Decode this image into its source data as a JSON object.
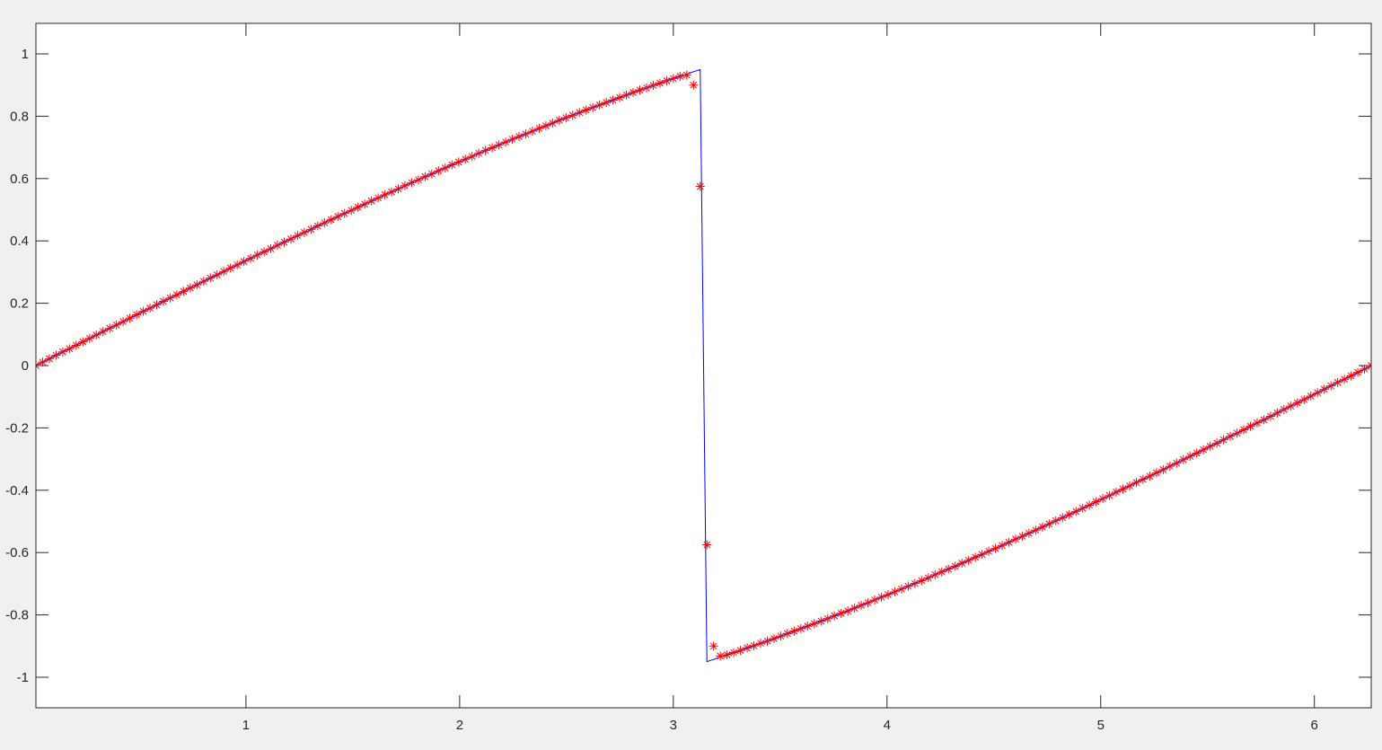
{
  "chart_data": {
    "type": "line",
    "title": "",
    "xlabel": "",
    "ylabel": "",
    "xlim": [
      0.017,
      6.266
    ],
    "ylim": [
      -1.098,
      1.098
    ],
    "grid": false,
    "legend": "none",
    "x_ticks": [
      "1",
      "2",
      "3",
      "4",
      "5",
      "6"
    ],
    "x_tick_values": [
      1,
      2,
      3,
      4,
      5,
      6
    ],
    "y_ticks": [
      "-1",
      "-0.8",
      "-0.6",
      "-0.4",
      "-0.2",
      "0",
      "0.2",
      "0.4",
      "0.6",
      "0.8",
      "1"
    ],
    "y_tick_values": [
      -1,
      -0.8,
      -0.6,
      -0.4,
      -0.2,
      0,
      0.2,
      0.4,
      0.6,
      0.8,
      1
    ],
    "x": {
      "start": 0.017,
      "stop": 6.266,
      "count": 200
    },
    "series": [
      {
        "style": "line",
        "color": "#0000ff",
        "values": [
          0,
          0.011,
          0.022,
          0.033,
          0.044,
          0.054,
          0.065,
          0.076,
          0.087,
          0.098,
          0.109,
          0.12,
          0.13,
          0.141,
          0.152,
          0.163,
          0.174,
          0.184,
          0.195,
          0.206,
          0.217,
          0.227,
          0.238,
          0.249,
          0.259,
          0.27,
          0.281,
          0.291,
          0.302,
          0.313,
          0.323,
          0.334,
          0.344,
          0.355,
          0.365,
          0.375,
          0.386,
          0.396,
          0.406,
          0.417,
          0.427,
          0.437,
          0.448,
          0.458,
          0.468,
          0.478,
          0.488,
          0.498,
          0.508,
          0.518,
          0.528,
          0.538,
          0.548,
          0.557,
          0.567,
          0.577,
          0.587,
          0.596,
          0.606,
          0.615,
          0.625,
          0.634,
          0.644,
          0.653,
          0.662,
          0.671,
          0.681,
          0.69,
          0.699,
          0.708,
          0.717,
          0.726,
          0.735,
          0.743,
          0.752,
          0.761,
          0.769,
          0.778,
          0.787,
          0.795,
          0.803,
          0.812,
          0.82,
          0.828,
          0.836,
          0.844,
          0.852,
          0.86,
          0.868,
          0.876,
          0.884,
          0.891,
          0.899,
          0.906,
          0.914,
          0.921,
          0.928,
          0.935,
          0.943,
          0.95,
          -0.95,
          -0.943,
          -0.935,
          -0.928,
          -0.921,
          -0.914,
          -0.906,
          -0.899,
          -0.891,
          -0.884,
          -0.876,
          -0.868,
          -0.86,
          -0.852,
          -0.844,
          -0.836,
          -0.828,
          -0.82,
          -0.812,
          -0.803,
          -0.795,
          -0.787,
          -0.778,
          -0.769,
          -0.761,
          -0.752,
          -0.743,
          -0.735,
          -0.726,
          -0.717,
          -0.708,
          -0.699,
          -0.69,
          -0.681,
          -0.671,
          -0.662,
          -0.653,
          -0.644,
          -0.634,
          -0.625,
          -0.615,
          -0.606,
          -0.596,
          -0.587,
          -0.577,
          -0.567,
          -0.557,
          -0.548,
          -0.538,
          -0.528,
          -0.518,
          -0.508,
          -0.498,
          -0.488,
          -0.478,
          -0.468,
          -0.458,
          -0.448,
          -0.437,
          -0.427,
          -0.417,
          -0.406,
          -0.396,
          -0.386,
          -0.375,
          -0.365,
          -0.355,
          -0.344,
          -0.334,
          -0.323,
          -0.313,
          -0.302,
          -0.291,
          -0.281,
          -0.27,
          -0.259,
          -0.249,
          -0.238,
          -0.227,
          -0.217,
          -0.206,
          -0.195,
          -0.184,
          -0.174,
          -0.163,
          -0.152,
          -0.141,
          -0.13,
          -0.12,
          -0.109,
          -0.098,
          -0.087,
          -0.076,
          -0.065,
          -0.054,
          -0.044,
          -0.033,
          -0.022,
          -0.011,
          0
        ]
      },
      {
        "style": "markers",
        "marker": "asterisk",
        "color": "#ff0000",
        "values": [
          0,
          0.011,
          0.022,
          0.033,
          0.044,
          0.054,
          0.065,
          0.076,
          0.087,
          0.098,
          0.109,
          0.12,
          0.13,
          0.141,
          0.152,
          0.163,
          0.174,
          0.184,
          0.195,
          0.206,
          0.217,
          0.227,
          0.238,
          0.249,
          0.259,
          0.27,
          0.281,
          0.291,
          0.302,
          0.313,
          0.323,
          0.334,
          0.344,
          0.355,
          0.365,
          0.375,
          0.386,
          0.396,
          0.406,
          0.417,
          0.427,
          0.437,
          0.448,
          0.458,
          0.468,
          0.478,
          0.488,
          0.498,
          0.508,
          0.518,
          0.528,
          0.538,
          0.548,
          0.557,
          0.567,
          0.577,
          0.587,
          0.596,
          0.606,
          0.615,
          0.625,
          0.634,
          0.644,
          0.653,
          0.662,
          0.671,
          0.681,
          0.69,
          0.699,
          0.708,
          0.717,
          0.726,
          0.735,
          0.743,
          0.752,
          0.761,
          0.769,
          0.778,
          0.787,
          0.795,
          0.803,
          0.812,
          0.82,
          0.828,
          0.836,
          0.844,
          0.852,
          0.86,
          0.868,
          0.876,
          0.884,
          0.891,
          0.899,
          0.906,
          0.914,
          0.921,
          0.928,
          0.932,
          0.9,
          0.575,
          -0.575,
          -0.9,
          -0.932,
          -0.928,
          -0.921,
          -0.914,
          -0.906,
          -0.899,
          -0.891,
          -0.884,
          -0.876,
          -0.868,
          -0.86,
          -0.852,
          -0.844,
          -0.836,
          -0.828,
          -0.82,
          -0.812,
          -0.803,
          -0.795,
          -0.787,
          -0.778,
          -0.769,
          -0.761,
          -0.752,
          -0.743,
          -0.735,
          -0.726,
          -0.717,
          -0.708,
          -0.699,
          -0.69,
          -0.681,
          -0.671,
          -0.662,
          -0.653,
          -0.644,
          -0.634,
          -0.625,
          -0.615,
          -0.606,
          -0.596,
          -0.587,
          -0.577,
          -0.567,
          -0.557,
          -0.548,
          -0.538,
          -0.528,
          -0.518,
          -0.508,
          -0.498,
          -0.488,
          -0.478,
          -0.468,
          -0.458,
          -0.448,
          -0.437,
          -0.427,
          -0.417,
          -0.406,
          -0.396,
          -0.386,
          -0.375,
          -0.365,
          -0.355,
          -0.344,
          -0.334,
          -0.323,
          -0.313,
          -0.302,
          -0.291,
          -0.281,
          -0.27,
          -0.259,
          -0.249,
          -0.238,
          -0.227,
          -0.217,
          -0.206,
          -0.195,
          -0.184,
          -0.174,
          -0.163,
          -0.152,
          -0.141,
          -0.13,
          -0.12,
          -0.109,
          -0.098,
          -0.087,
          -0.076,
          -0.065,
          -0.054,
          -0.044,
          -0.033,
          -0.022,
          -0.011,
          0
        ]
      }
    ]
  }
}
